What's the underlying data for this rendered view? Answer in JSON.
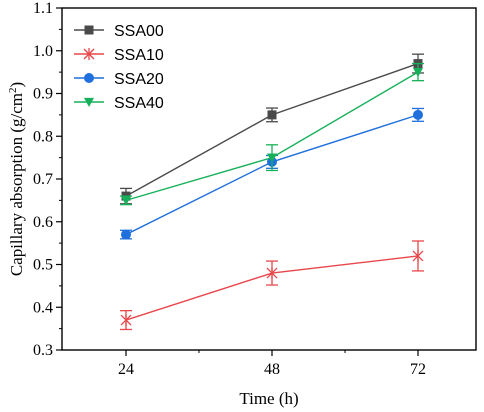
{
  "chart_data": {
    "type": "line",
    "title": "",
    "xlabel": "Time (h)",
    "ylabel": "Capillary absorption (g/cm²)",
    "ylabel_parts": {
      "text": "Capillary absorption (g/cm",
      "superscript": "2",
      "suffix": ")"
    },
    "x": [
      24,
      48,
      72
    ],
    "xticks": [
      "24",
      "48",
      "72"
    ],
    "yticks": [
      "0.3",
      "0.4",
      "0.5",
      "0.6",
      "0.7",
      "0.8",
      "0.9",
      "1.0",
      "1.1"
    ],
    "ylim": [
      0.3,
      1.1
    ],
    "grid": false,
    "legend_position": "top-left",
    "series": [
      {
        "name": "SSA00",
        "color": "#4a4a4a",
        "marker": "square",
        "values": [
          0.66,
          0.85,
          0.97
        ],
        "errors": [
          0.018,
          0.016,
          0.022
        ]
      },
      {
        "name": "SSA10",
        "color": "#e8474b",
        "marker": "asterisk",
        "values": [
          0.37,
          0.48,
          0.52
        ],
        "errors": [
          0.022,
          0.028,
          0.035
        ]
      },
      {
        "name": "SSA20",
        "color": "#1f6fdc",
        "marker": "circle",
        "values": [
          0.57,
          0.74,
          0.85
        ],
        "errors": [
          0.01,
          0.015,
          0.015
        ]
      },
      {
        "name": "SSA40",
        "color": "#17b05a",
        "marker": "triangle-down",
        "values": [
          0.65,
          0.75,
          0.95
        ],
        "errors": [
          0.01,
          0.03,
          0.02
        ]
      }
    ]
  }
}
